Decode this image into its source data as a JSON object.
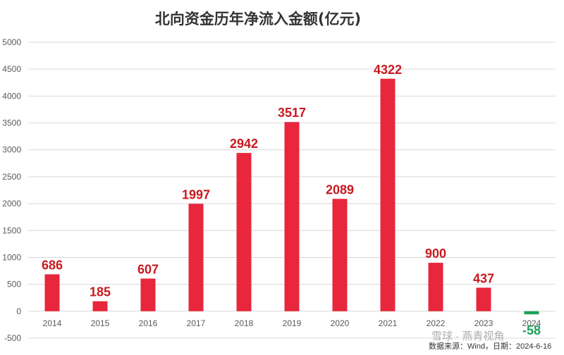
{
  "chart_data": {
    "type": "bar",
    "title": "北向资金历年净流入金额(亿元)",
    "categories": [
      "2014",
      "2015",
      "2016",
      "2017",
      "2018",
      "2019",
      "2020",
      "2021",
      "2022",
      "2023",
      "2024"
    ],
    "values": [
      686,
      185,
      607,
      1997,
      2942,
      3517,
      2089,
      4322,
      900,
      437,
      -58
    ],
    "data_labels": [
      "686",
      "185",
      "607",
      "1997",
      "2942",
      "3517",
      "2089",
      "4322",
      "900",
      "437",
      "-58"
    ],
    "yticks": [
      -500,
      0,
      500,
      1000,
      1500,
      2000,
      2500,
      3000,
      3500,
      4000,
      4500,
      5000
    ],
    "ylim": [
      -500,
      5000
    ],
    "grid": true,
    "colors": {
      "positive": "#e8273c",
      "negative": "#1aa257",
      "label_positive": "#c8191f",
      "label_negative": "#1aa257"
    }
  },
  "footer": {
    "source": "数据来源：Wind，日期：2024-6-16",
    "watermark": "雪球 · 燕青视角"
  }
}
